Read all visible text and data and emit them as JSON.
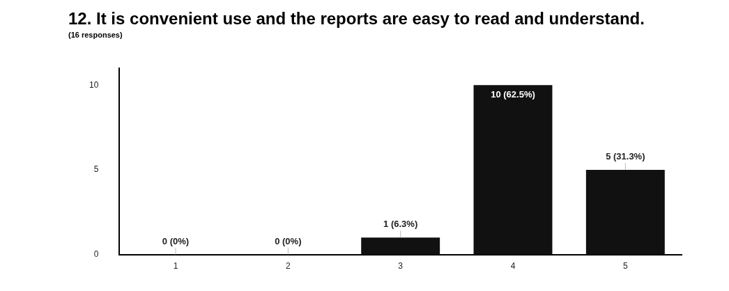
{
  "chart_data": {
    "type": "bar",
    "title": "12. It is convenient use and the reports are easy to read and understand.",
    "subtitle": "(16 responses)",
    "categories": [
      "1",
      "2",
      "3",
      "4",
      "5"
    ],
    "values": [
      0,
      0,
      1,
      10,
      5
    ],
    "value_labels": [
      "0 (0%)",
      "0 (0%)",
      "1 (6.3%)",
      "10 (62.5%)",
      "5 (31.3%)"
    ],
    "color": "#111111",
    "ylim": [
      0,
      11
    ],
    "yticks": [
      0,
      5,
      10
    ],
    "grid": false,
    "legend": false
  }
}
